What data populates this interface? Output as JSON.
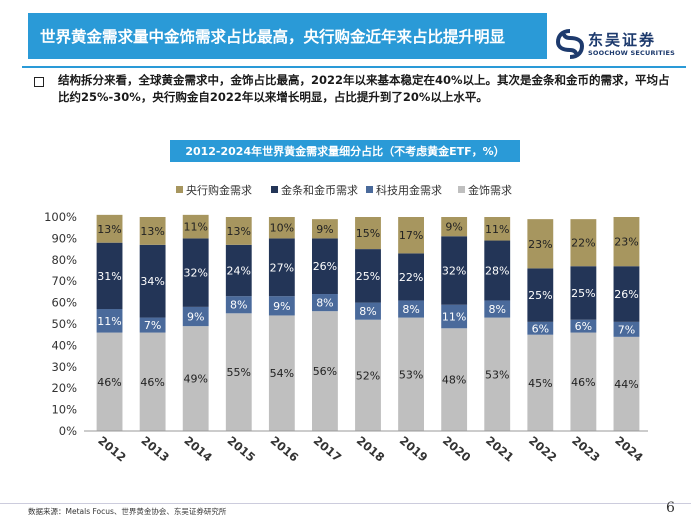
{
  "header": {
    "title": "世界黄金需求量中金饰需求占比最高，央行购金近年来占比提升明显",
    "brand_cn": "东吴证券",
    "brand_en": "SOOCHOW SECURITIES"
  },
  "description": "结构拆分来看，全球黄金需求中，金饰占比最高，2022年以来基本稳定在40%以上。其次是金条和金币的需求，平均占比约25%-30%，央行购金自2022年以来增长明显，占比提升到了20%以上水平。",
  "chart_data": {
    "type": "bar",
    "stacked": true,
    "title": "2012-2024年世界黄金需求量细分占比（不考虑黄金ETF，%）",
    "legend_position": "top",
    "categories": [
      "2012",
      "2013",
      "2014",
      "2015",
      "2016",
      "2017",
      "2018",
      "2019",
      "2020",
      "2021",
      "2022",
      "2023",
      "2024"
    ],
    "y_ticks": [
      "0%",
      "10%",
      "20%",
      "30%",
      "40%",
      "50%",
      "60%",
      "70%",
      "80%",
      "90%",
      "100%"
    ],
    "ylim": [
      0,
      100
    ],
    "grid": false,
    "series": [
      {
        "name": "金饰需求",
        "color": "#bfbfbf",
        "values": [
          46,
          46,
          49,
          55,
          54,
          56,
          52,
          53,
          48,
          53,
          45,
          46,
          44
        ],
        "labels": [
          "46%",
          "46%",
          "49%",
          "55%",
          "54%",
          "56%",
          "52%",
          "53%",
          "48%",
          "53%",
          "45%",
          "46%",
          "44%"
        ]
      },
      {
        "name": "科技用金需求",
        "color": "#4a6a9b",
        "values": [
          11,
          7,
          9,
          8,
          9,
          8,
          8,
          8,
          11,
          8,
          6,
          6,
          7
        ],
        "labels": [
          "11%",
          "7%",
          "9%",
          "8%",
          "9%",
          "8%",
          "8%",
          "8%",
          "11%",
          "8%",
          "6%",
          "6%",
          "7%"
        ]
      },
      {
        "name": "金条和金币需求",
        "color": "#233557",
        "values": [
          31,
          34,
          32,
          24,
          27,
          26,
          25,
          22,
          32,
          28,
          25,
          25,
          26
        ],
        "labels": [
          "31%",
          "34%",
          "32%",
          "24%",
          "27%",
          "26%",
          "25%",
          "22%",
          "32%",
          "28%",
          "25%",
          "25%",
          "26%"
        ]
      },
      {
        "name": "央行购金需求",
        "color": "#a7965f",
        "values": [
          13,
          13,
          11,
          13,
          10,
          9,
          15,
          17,
          9,
          11,
          23,
          22,
          23
        ],
        "labels": [
          "13%",
          "13%",
          "11%",
          "13%",
          "10%",
          "9%",
          "15%",
          "17%",
          "9%",
          "11%",
          "23%",
          "22%",
          "23%"
        ]
      }
    ],
    "legend_order": [
      3,
      2,
      1,
      0
    ]
  },
  "footer": {
    "source": "数据来源：Metals Focus、世界黄金协会、东吴证券研究所",
    "page": "6"
  }
}
